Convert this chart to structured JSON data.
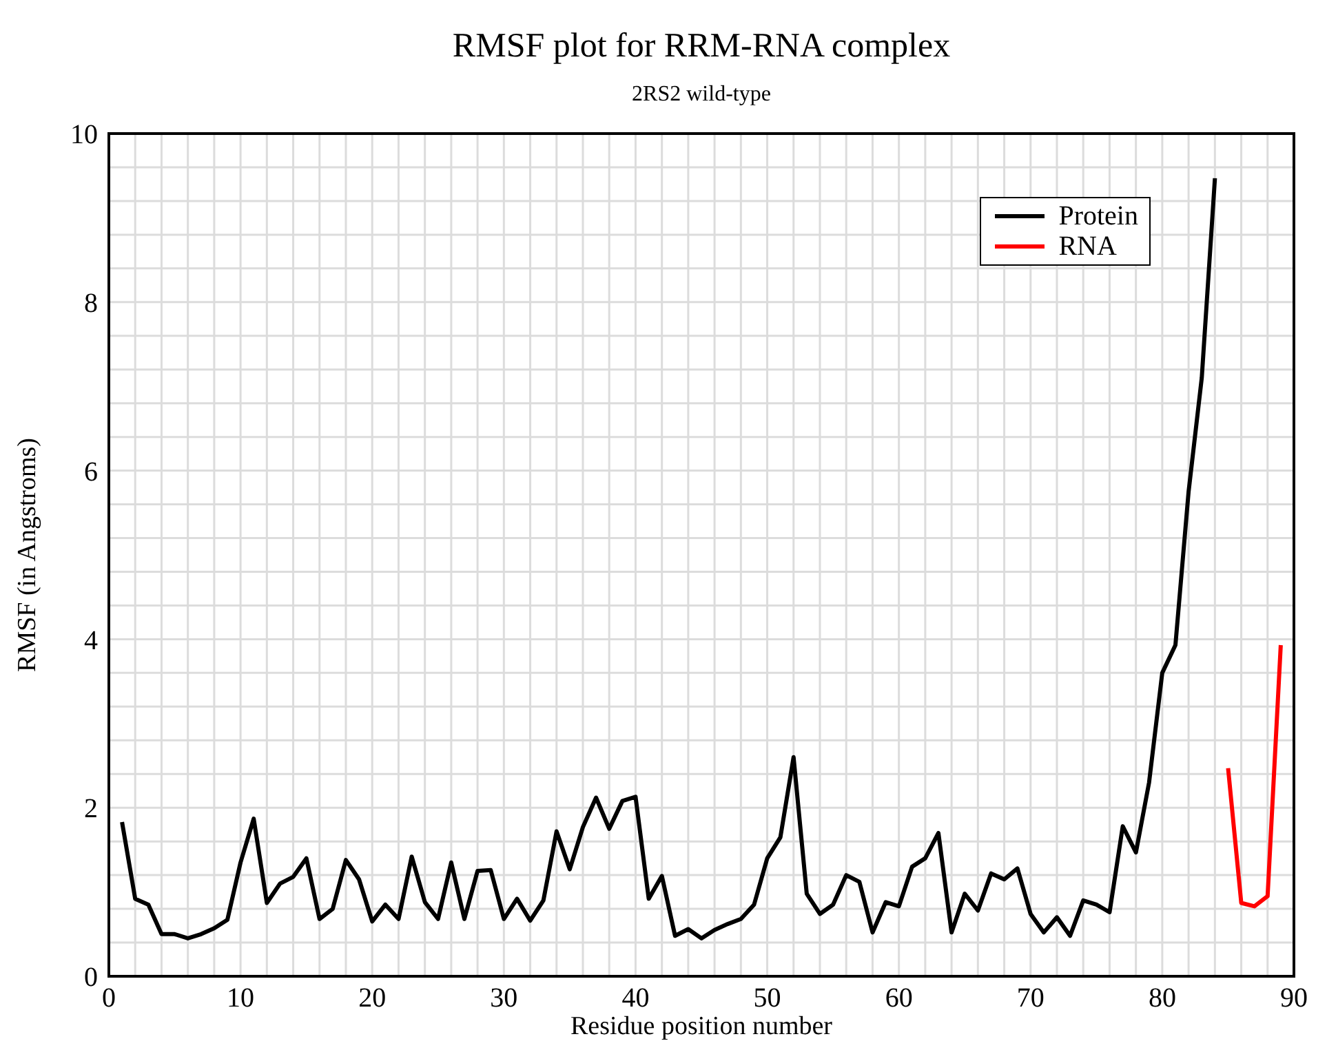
{
  "chart_data": {
    "type": "line",
    "title": "RMSF plot for RRM-RNA complex",
    "subtitle": "2RS2 wild-type",
    "xlabel": "Residue position number",
    "ylabel": "RMSF (in Angstroms)",
    "xlim": [
      0,
      90
    ],
    "ylim": [
      0,
      10
    ],
    "xticks": [
      0,
      {
        "value": 2,
        "label": null
      },
      {
        "value": 4,
        "label": null
      },
      {
        "value": 6,
        "label": null
      },
      {
        "value": 8,
        "label": null
      },
      10,
      {
        "value": 12,
        "label": null
      },
      {
        "value": 14,
        "label": null
      },
      {
        "value": 16,
        "label": null
      },
      {
        "value": 18,
        "label": null
      },
      20,
      {
        "value": 22,
        "label": null
      },
      {
        "value": 24,
        "label": null
      },
      {
        "value": 26,
        "label": null
      },
      {
        "value": 28,
        "label": null
      },
      30,
      {
        "value": 32,
        "label": null
      },
      {
        "value": 34,
        "label": null
      },
      {
        "value": 36,
        "label": null
      },
      {
        "value": 38,
        "label": null
      },
      40,
      {
        "value": 42,
        "label": null
      },
      {
        "value": 44,
        "label": null
      },
      {
        "value": 46,
        "label": null
      },
      {
        "value": 48,
        "label": null
      },
      50,
      {
        "value": 52,
        "label": null
      },
      {
        "value": 54,
        "label": null
      },
      {
        "value": 56,
        "label": null
      },
      {
        "value": 58,
        "label": null
      },
      60,
      {
        "value": 62,
        "label": null
      },
      {
        "value": 64,
        "label": null
      },
      {
        "value": 66,
        "label": null
      },
      {
        "value": 68,
        "label": null
      },
      70,
      {
        "value": 72,
        "label": null
      },
      {
        "value": 74,
        "label": null
      },
      {
        "value": 76,
        "label": null
      },
      {
        "value": 78,
        "label": null
      },
      80,
      {
        "value": 82,
        "label": null
      },
      {
        "value": 84,
        "label": null
      },
      {
        "value": 86,
        "label": null
      },
      {
        "value": 88,
        "label": null
      },
      90
    ],
    "yticks": [
      0,
      {
        "value": 0.4,
        "label": null
      },
      {
        "value": 0.8,
        "label": null
      },
      {
        "value": 1.2,
        "label": null
      },
      {
        "value": 1.6,
        "label": null
      },
      2,
      {
        "value": 2.4,
        "label": null
      },
      {
        "value": 2.8,
        "label": null
      },
      {
        "value": 3.2,
        "label": null
      },
      {
        "value": 3.6,
        "label": null
      },
      4,
      {
        "value": 4.4,
        "label": null
      },
      {
        "value": 4.8,
        "label": null
      },
      {
        "value": 5.2,
        "label": null
      },
      {
        "value": 5.6,
        "label": null
      },
      6,
      {
        "value": 6.4,
        "label": null
      },
      {
        "value": 6.8,
        "label": null
      },
      {
        "value": 7.2,
        "label": null
      },
      {
        "value": 7.6,
        "label": null
      },
      8,
      {
        "value": 8.4,
        "label": null
      },
      {
        "value": 8.8,
        "label": null
      },
      {
        "value": 9.2,
        "label": null
      },
      {
        "value": 9.6,
        "label": null
      },
      10
    ],
    "grid": true,
    "legend": "top right",
    "marker": "none",
    "line_style": "solid",
    "series": [
      {
        "name": "Protein",
        "color": "#000000",
        "x": [
          1,
          2,
          3,
          4,
          5,
          6,
          7,
          8,
          9,
          10,
          11,
          12,
          13,
          14,
          15,
          16,
          17,
          18,
          19,
          20,
          21,
          22,
          23,
          24,
          25,
          26,
          27,
          28,
          29,
          30,
          31,
          32,
          33,
          34,
          35,
          36,
          37,
          38,
          39,
          40,
          41,
          42,
          43,
          44,
          45,
          46,
          47,
          48,
          49,
          50,
          51,
          52,
          53,
          54,
          55,
          56,
          57,
          58,
          59,
          60,
          61,
          62,
          63,
          64,
          65,
          66,
          67,
          68,
          69,
          70,
          71,
          72,
          73,
          74,
          75,
          76,
          77,
          78,
          79,
          80,
          81,
          82,
          83,
          84
        ],
        "values": [
          1.83,
          0.92,
          0.85,
          0.5,
          0.5,
          0.45,
          0.5,
          0.57,
          0.67,
          1.35,
          1.87,
          0.87,
          1.1,
          1.18,
          1.4,
          0.68,
          0.8,
          1.38,
          1.15,
          0.65,
          0.85,
          0.68,
          1.42,
          0.88,
          0.68,
          1.35,
          0.68,
          1.25,
          1.26,
          0.68,
          0.92,
          0.66,
          0.9,
          1.72,
          1.27,
          1.77,
          2.12,
          1.75,
          2.08,
          2.13,
          0.92,
          1.19,
          0.48,
          0.56,
          0.45,
          0.55,
          0.62,
          0.68,
          0.85,
          1.4,
          1.65,
          2.6,
          0.98,
          0.74,
          0.85,
          1.2,
          1.12,
          0.52,
          0.88,
          0.83,
          1.3,
          1.4,
          1.7,
          0.52,
          0.98,
          0.78,
          1.22,
          1.15,
          1.28,
          0.74,
          0.52,
          0.7,
          0.48,
          0.9,
          0.85,
          0.76,
          1.78,
          1.47,
          2.3,
          3.6,
          3.93,
          5.75,
          7.1,
          9.47
        ]
      },
      {
        "name": "RNA",
        "color": "#ff0000",
        "x": [
          85,
          86,
          87,
          88,
          89
        ],
        "values": [
          2.47,
          0.87,
          0.83,
          0.95,
          3.93
        ]
      }
    ]
  }
}
